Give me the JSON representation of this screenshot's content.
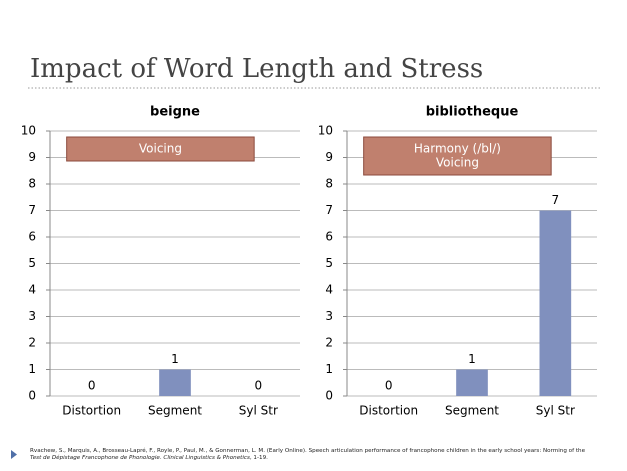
{
  "title": "Impact of Word Length and Stress",
  "chart_data": [
    {
      "type": "bar",
      "title": "beigne",
      "categories": [
        "Distortion",
        "Segment",
        "Syl Str"
      ],
      "values": [
        0,
        1,
        0
      ],
      "color": "#8090be",
      "ylim": [
        0,
        10
      ],
      "yticks": [
        0,
        1,
        2,
        3,
        4,
        5,
        6,
        7,
        8,
        9,
        10
      ],
      "grid": true,
      "annotation": [
        "Voicing"
      ],
      "annotation_color": "#c0806e"
    },
    {
      "type": "bar",
      "title": "bibliotheque",
      "categories": [
        "Distortion",
        "Segment",
        "Syl Str"
      ],
      "values": [
        0,
        1,
        7
      ],
      "color": "#8090be",
      "ylim": [
        0,
        10
      ],
      "yticks": [
        0,
        1,
        2,
        3,
        4,
        5,
        6,
        7,
        8,
        9,
        10
      ],
      "grid": true,
      "annotation": [
        "Harmony (/bl/)",
        "Voicing"
      ],
      "annotation_color": "#c0806e"
    }
  ],
  "citation": [
    "Rvachew, S., Marquis, A., Brosseau-Lapré, F., Royle, P., Paul, M., & Gonnerman, L. M. (Early Online). Speech articulation performance of francophone children in the early school years: Norming of the ",
    "Test de Dépistage Francophone de Phonologie",
    ". ",
    "Clinical Linguistics & Phonetics",
    ", 1-19."
  ]
}
